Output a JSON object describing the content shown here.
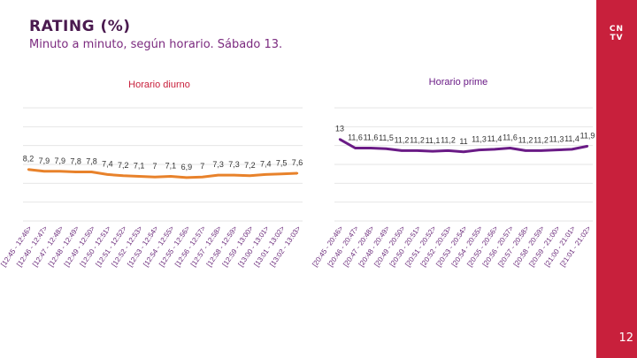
{
  "header": {
    "title": "RATING (%)",
    "subtitle": "Minuto a minuto, según horario. Sábado 13."
  },
  "branding": {
    "logo_text": "CN\nTV"
  },
  "page_number": "12",
  "colors": {
    "diurno": "#e8822b",
    "prime": "#6a1b86",
    "sidebar": "#c8203c",
    "title": "#4a1a4f"
  },
  "chart_data": [
    {
      "type": "line",
      "title": "Horario diurno",
      "categories": [
        "[12:45 - 12:46>",
        "[12:46 - 12:47>",
        "[12:47 - 12:48>",
        "[12:48 - 12:49>",
        "[12:49 - 12:50>",
        "[12:50 - 12:51>",
        "[12:51 - 12:52>",
        "[12:52 - 12:53>",
        "[12:53 - 12:54>",
        "[12:54 - 12:55>",
        "[12:55 - 12:56>",
        "[12:56 - 12:57>",
        "[12:57 - 12:58>",
        "[12:58 - 12:59>",
        "[12:59 - 13:00>",
        "[13:00 - 13:01>",
        "[13:01 - 13:02>",
        "[13:02 - 13:03>"
      ],
      "values": [
        8.2,
        7.9,
        7.9,
        7.8,
        7.8,
        7.4,
        7.2,
        7.1,
        7,
        7.1,
        6.9,
        7,
        7.3,
        7.3,
        7.2,
        7.4,
        7.5,
        7.6
      ],
      "value_labels": [
        "8,2",
        "7,9",
        "7,9",
        "7,8",
        "7,8",
        "7,4",
        "7,2",
        "7,1",
        "7",
        "7,1",
        "6,9",
        "7",
        "7,3",
        "7,3",
        "7,2",
        "7,4",
        "7,5",
        "7,6"
      ],
      "grid": true,
      "legend": "none"
    },
    {
      "type": "line",
      "title": "Horario prime",
      "categories": [
        "[20:45 - 20:46>",
        "[20:46 - 20:47>",
        "[20:47 - 20:48>",
        "[20:48 - 20:49>",
        "[20:49 - 20:50>",
        "[20:50 - 20:51>",
        "[20:51 - 20:52>",
        "[20:52 - 20:53>",
        "[20:53 - 20:54>",
        "[20:54 - 20:55>",
        "[20:55 - 20:56>",
        "[20:56 - 20:57>",
        "[20:57 - 20:58>",
        "[20:58 - 20:59>",
        "[20:59 - 21:00>",
        "[21:00 - 21:01>",
        "[21:01 - 21:02>"
      ],
      "values": [
        13,
        11.6,
        11.6,
        11.5,
        11.2,
        11.2,
        11.1,
        11.2,
        11,
        11.3,
        11.4,
        11.6,
        11.2,
        11.2,
        11.3,
        11.4,
        11.9
      ],
      "value_labels": [
        "13",
        "11,6",
        "11,6",
        "11,5",
        "11,2",
        "11,2",
        "11,1",
        "11,2",
        "11",
        "11,3",
        "11,4",
        "11,6",
        "11,2",
        "11,2",
        "11,3",
        "11,4",
        "11,9"
      ],
      "grid": true,
      "legend": "none"
    }
  ]
}
